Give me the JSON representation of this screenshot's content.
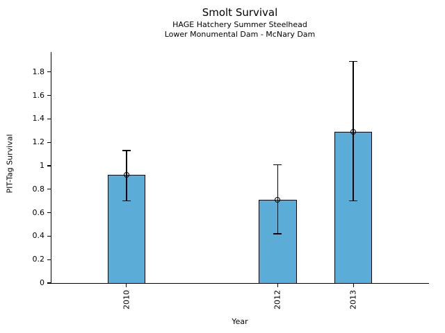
{
  "chart_data": {
    "type": "bar",
    "title": "Smolt Survival",
    "subtitle_line1": "HAGE Hatchery Summer Steelhead",
    "subtitle_line2": "Lower Monumental Dam - McNary Dam",
    "xlabel": "Year",
    "ylabel": "PIT-Tag Survival",
    "categories": [
      "2010",
      "2012",
      "2013"
    ],
    "x_numeric": [
      2010,
      2012,
      2013
    ],
    "values": [
      0.92,
      0.71,
      1.29
    ],
    "error_low": [
      0.7,
      0.42,
      0.7
    ],
    "error_high": [
      1.13,
      1.01,
      1.89
    ],
    "xlim": [
      2009,
      2014
    ],
    "ylim": [
      0,
      1.97
    ],
    "yticks": [
      0,
      0.2,
      0.4,
      0.6,
      0.8,
      1,
      1.2,
      1.4,
      1.6,
      1.8
    ],
    "ytick_labels": [
      "0",
      "0.2",
      "0.4",
      "0.6",
      "0.8",
      "1",
      "1.2",
      "1.4",
      "1.6",
      "1.8"
    ],
    "bar_width_x": 0.5,
    "marker": "open-circle",
    "grid": false,
    "legend": null,
    "colors": {
      "bar_fill": "#5BACD6",
      "bar_edge": "#000000",
      "error_bar": "#000000",
      "axis": "#000000",
      "text": "#000000",
      "background": "#FFFFFF"
    }
  }
}
